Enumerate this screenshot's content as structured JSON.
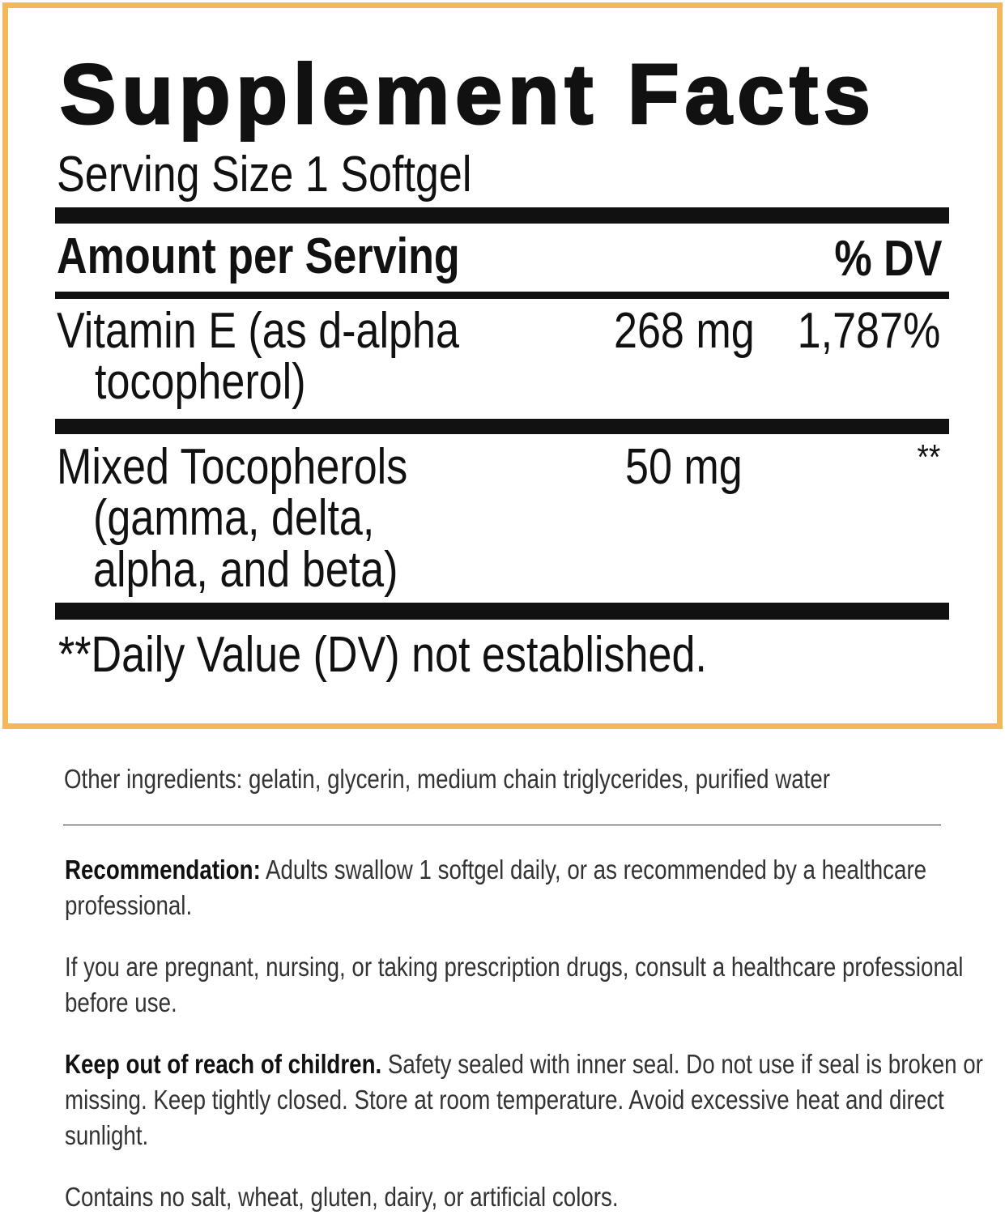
{
  "colors": {
    "border": "#f4b75a",
    "text": "#111111"
  },
  "panel": {
    "title": "Supplement Facts",
    "serving_size": "Serving Size 1 Softgel",
    "header": {
      "amount": "Amount per Serving",
      "dv": "% DV"
    },
    "rows": [
      {
        "name_line1": "Vitamin E (as d-alpha",
        "name_line2": "tocopherol)",
        "amount": "268 mg",
        "dv": "1,787%"
      },
      {
        "name_line1": "Mixed Tocopherols",
        "name_line2": "(gamma, delta,",
        "name_line3": "alpha, and beta)",
        "amount": "50 mg",
        "dv": "**"
      }
    ],
    "footnote": "**Daily Value (DV) not established."
  },
  "other_ingredients": "Other ingredients: gelatin, glycerin, medium chain triglycerides, purified water",
  "recommendation": {
    "label": "Recommendation:",
    "text": " Adults swallow 1 softgel daily, or as recommended by a healthcare professional."
  },
  "warning": "If you are pregnant, nursing, or taking prescription drugs, consult a healthcare professional before use.",
  "storage": {
    "label": "Keep out of reach of children.",
    "text": " Safety sealed with inner seal. Do not use if seal is broken or missing. Keep tightly closed. Store at room temperature. Avoid excessive heat and direct sunlight."
  },
  "contains": "Contains no salt, wheat, gluten, dairy, or artificial colors."
}
